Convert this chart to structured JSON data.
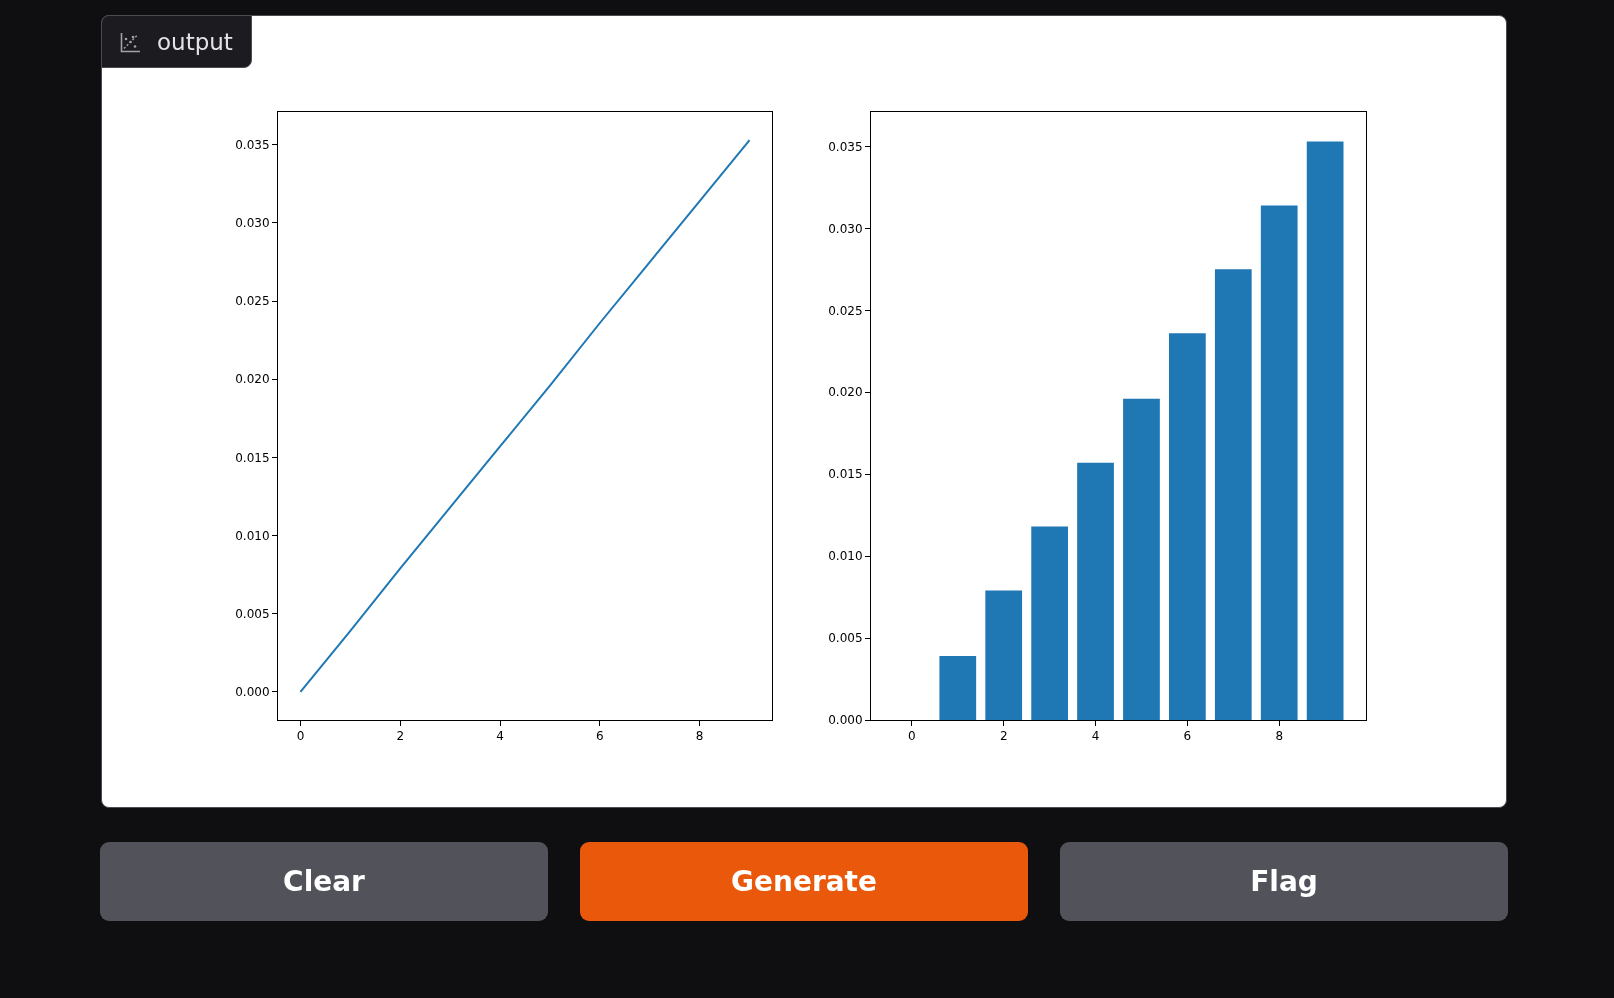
{
  "chart_data": [
    {
      "type": "line",
      "x": [
        0,
        1,
        2,
        3,
        4,
        5,
        6,
        7,
        8,
        9
      ],
      "values": [
        0,
        0.0039,
        0.0079,
        0.0118,
        0.0157,
        0.0196,
        0.0236,
        0.0275,
        0.0314,
        0.0353
      ],
      "color": "#1f77b4",
      "xlim": [
        -0.45,
        9.45
      ],
      "ylim": [
        -0.0018,
        0.0371
      ],
      "xticks": [
        0,
        2,
        4,
        6,
        8
      ],
      "yticks": [
        {
          "value": 0,
          "label": "0.000"
        },
        {
          "value": 0.005,
          "label": "0.005"
        },
        {
          "value": 0.01,
          "label": "0.010"
        },
        {
          "value": 0.015,
          "label": "0.015"
        },
        {
          "value": 0.02,
          "label": "0.020"
        },
        {
          "value": 0.025,
          "label": "0.025"
        },
        {
          "value": 0.03,
          "label": "0.030"
        },
        {
          "value": 0.035,
          "label": "0.035"
        }
      ]
    },
    {
      "type": "bar",
      "x": [
        0,
        1,
        2,
        3,
        4,
        5,
        6,
        7,
        8,
        9
      ],
      "values": [
        0,
        0.0039,
        0.0079,
        0.0118,
        0.0157,
        0.0196,
        0.0236,
        0.0275,
        0.0314,
        0.0353
      ],
      "color": "#1f77b4",
      "xlim": [
        -0.89,
        9.89
      ],
      "ylim": [
        0,
        0.0371
      ],
      "xticks": [
        0,
        2,
        4,
        6,
        8
      ],
      "yticks": [
        {
          "value": 0,
          "label": "0.000"
        },
        {
          "value": 0.005,
          "label": "0.005"
        },
        {
          "value": 0.01,
          "label": "0.010"
        },
        {
          "value": 0.015,
          "label": "0.015"
        },
        {
          "value": 0.02,
          "label": "0.020"
        },
        {
          "value": 0.025,
          "label": "0.025"
        },
        {
          "value": 0.03,
          "label": "0.030"
        },
        {
          "value": 0.035,
          "label": "0.035"
        }
      ]
    },
    {
      "type": "other",
      "title": "output",
      "annotations": [
        "Clear",
        "Generate",
        "Flag"
      ]
    }
  ]
}
